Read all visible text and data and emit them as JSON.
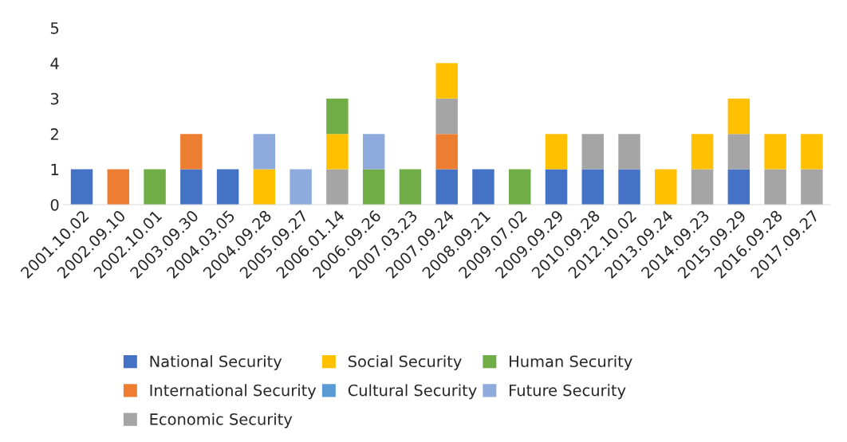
{
  "chart_data": {
    "type": "bar",
    "stacked": true,
    "categories": [
      "2001.10.02",
      "2002.09.10",
      "2002.10.01",
      "2003.09.30",
      "2004.03.05",
      "2004.09.28",
      "2005.09.27",
      "2006.01.14",
      "2006.09.26",
      "2007.03.23",
      "2007.09.24",
      "2008.09.21",
      "2009.07.02",
      "2009.09.29",
      "2010.09.28",
      "2012.10.02",
      "2013.09.24",
      "2014.09.23",
      "2015.09.29",
      "2016.09.28",
      "2017.09.27"
    ],
    "series": [
      {
        "name": "National Security",
        "color": "#4472c4",
        "values": [
          1,
          0,
          0,
          1,
          1,
          0,
          0,
          0,
          0,
          0,
          1,
          1,
          0,
          1,
          1,
          1,
          0,
          0,
          1,
          0,
          0
        ]
      },
      {
        "name": "International Security",
        "color": "#ed7d31",
        "values": [
          0,
          1,
          0,
          1,
          0,
          0,
          0,
          0,
          0,
          0,
          1,
          0,
          0,
          0,
          0,
          0,
          0,
          0,
          0,
          0,
          0
        ]
      },
      {
        "name": "Economic Security",
        "color": "#a5a5a5",
        "values": [
          0,
          0,
          0,
          0,
          0,
          0,
          0,
          1,
          0,
          0,
          1,
          0,
          0,
          0,
          1,
          1,
          0,
          1,
          1,
          1,
          1
        ]
      },
      {
        "name": "Social Security",
        "color": "#ffc000",
        "values": [
          0,
          0,
          0,
          0,
          0,
          1,
          0,
          1,
          0,
          0,
          1,
          0,
          0,
          1,
          0,
          0,
          1,
          1,
          1,
          1,
          1
        ]
      },
      {
        "name": "Cultural Security",
        "color": "#5b9bd5",
        "values": [
          0,
          0,
          0,
          0,
          0,
          0,
          0,
          0,
          0,
          0,
          0,
          0,
          0,
          0,
          0,
          0,
          0,
          0,
          0,
          0,
          0
        ]
      },
      {
        "name": "Human Security",
        "color": "#70ad47",
        "values": [
          0,
          0,
          1,
          0,
          0,
          0,
          0,
          1,
          1,
          1,
          0,
          0,
          1,
          0,
          0,
          0,
          0,
          0,
          0,
          0,
          0
        ]
      },
      {
        "name": "Future Security",
        "color": "#8faadc",
        "values": [
          0,
          0,
          0,
          0,
          0,
          1,
          1,
          0,
          1,
          0,
          0,
          0,
          0,
          0,
          0,
          0,
          0,
          0,
          0,
          0,
          0
        ]
      }
    ],
    "ylim": [
      0,
      5
    ],
    "yticks": [
      0,
      1,
      2,
      3,
      4,
      5
    ],
    "grid": false,
    "legend": "bottom"
  }
}
